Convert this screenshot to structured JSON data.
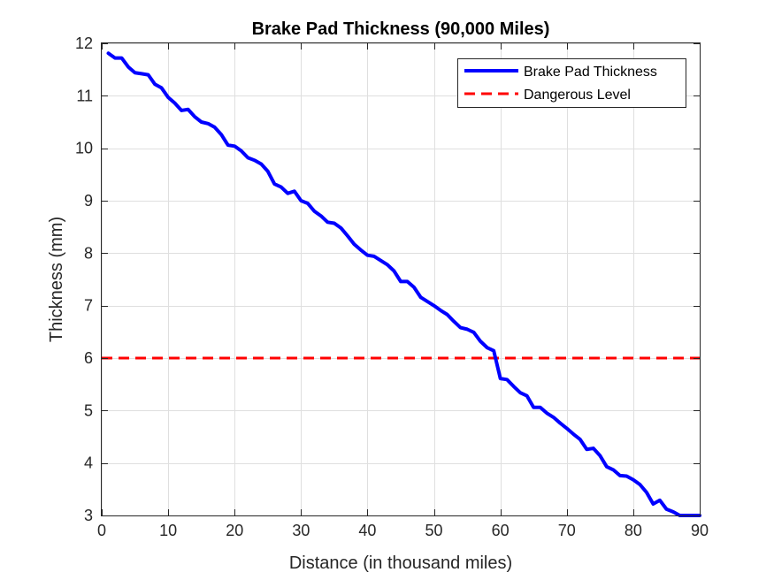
{
  "chart_data": {
    "type": "line",
    "title": "Brake Pad Thickness (90,000 Miles)",
    "xlabel": "Distance (in thousand miles)",
    "ylabel": "Thickness (mm)",
    "xlim": [
      0,
      90
    ],
    "ylim": [
      3,
      12
    ],
    "xticks": [
      0,
      10,
      20,
      30,
      40,
      50,
      60,
      70,
      80,
      90
    ],
    "yticks": [
      3,
      4,
      5,
      6,
      7,
      8,
      9,
      10,
      11,
      12
    ],
    "grid": true,
    "legend_position": "top-right",
    "series": [
      {
        "name": "Brake Pad Thickness",
        "color": "#0000ff",
        "style": "solid",
        "x": [
          1,
          2,
          3,
          4,
          5,
          6,
          7,
          8,
          9,
          10,
          11,
          12,
          13,
          14,
          15,
          16,
          17,
          18,
          19,
          20,
          21,
          22,
          23,
          24,
          25,
          26,
          27,
          28,
          29,
          30,
          31,
          32,
          33,
          34,
          35,
          36,
          37,
          38,
          39,
          40,
          41,
          42,
          43,
          44,
          45,
          46,
          47,
          48,
          49,
          50,
          51,
          52,
          53,
          54,
          55,
          56,
          57,
          58,
          59,
          60,
          61,
          62,
          63,
          64,
          65,
          66,
          67,
          68,
          69,
          70,
          71,
          72,
          73,
          74,
          75,
          76,
          77,
          78,
          79,
          80,
          81,
          82,
          83,
          84,
          85,
          86,
          87,
          88,
          89,
          90
        ],
        "y": [
          11.81,
          11.72,
          11.72,
          11.55,
          11.44,
          11.42,
          11.4,
          11.22,
          11.15,
          10.97,
          10.86,
          10.72,
          10.74,
          10.6,
          10.5,
          10.47,
          10.4,
          10.26,
          10.06,
          10.04,
          9.95,
          9.82,
          9.77,
          9.7,
          9.56,
          9.32,
          9.26,
          9.14,
          9.18,
          9.0,
          8.95,
          8.8,
          8.71,
          8.59,
          8.57,
          8.48,
          8.33,
          8.17,
          8.06,
          7.96,
          7.94,
          7.86,
          7.78,
          7.66,
          7.46,
          7.46,
          7.35,
          7.16,
          7.08,
          7.0,
          6.91,
          6.83,
          6.7,
          6.58,
          6.55,
          6.49,
          6.32,
          6.2,
          6.14,
          5.61,
          5.59,
          5.46,
          5.34,
          5.28,
          5.06,
          5.06,
          4.95,
          4.87,
          4.76,
          4.66,
          4.55,
          4.45,
          4.26,
          4.28,
          4.14,
          3.93,
          3.87,
          3.76,
          3.75,
          3.68,
          3.59,
          3.44,
          3.22,
          3.29,
          3.12,
          3.07,
          3.0,
          3.0,
          3.0,
          3.0
        ]
      },
      {
        "name": "Dangerous Level",
        "color": "#ff0000",
        "style": "dashed",
        "x": [
          0,
          90
        ],
        "y": [
          6,
          6
        ]
      }
    ]
  }
}
